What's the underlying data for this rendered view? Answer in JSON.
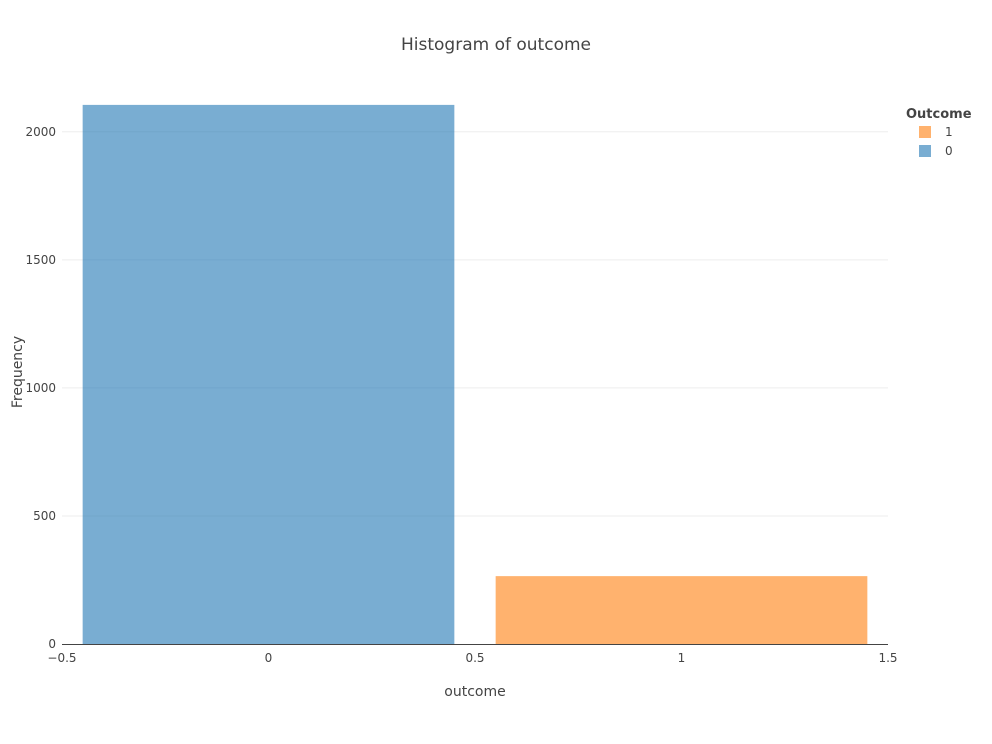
{
  "chart_data": {
    "type": "bar",
    "title": "Histogram of outcome",
    "xlabel": "outcome",
    "ylabel": "Frequency",
    "xlim": [
      -0.5,
      1.5
    ],
    "ylim": [
      0,
      2210
    ],
    "x_ticks": [
      -0.5,
      0,
      0.5,
      1,
      1.5
    ],
    "x_tick_labels": [
      "−0.5",
      "0",
      "0.5",
      "1",
      "1.5"
    ],
    "y_ticks": [
      0,
      500,
      1000,
      1500,
      2000
    ],
    "y_tick_labels": [
      "0",
      "500",
      "1000",
      "1500",
      "2000"
    ],
    "grid": true,
    "legend": {
      "title": "Outcome",
      "placement": "top-right"
    },
    "series": [
      {
        "name": "1",
        "x": 1,
        "value": 265,
        "color": "#ff7f0e"
      },
      {
        "name": "0",
        "x": 0,
        "value": 2105,
        "color": "#1f77b4"
      }
    ],
    "bar_opacity": 0.6
  }
}
